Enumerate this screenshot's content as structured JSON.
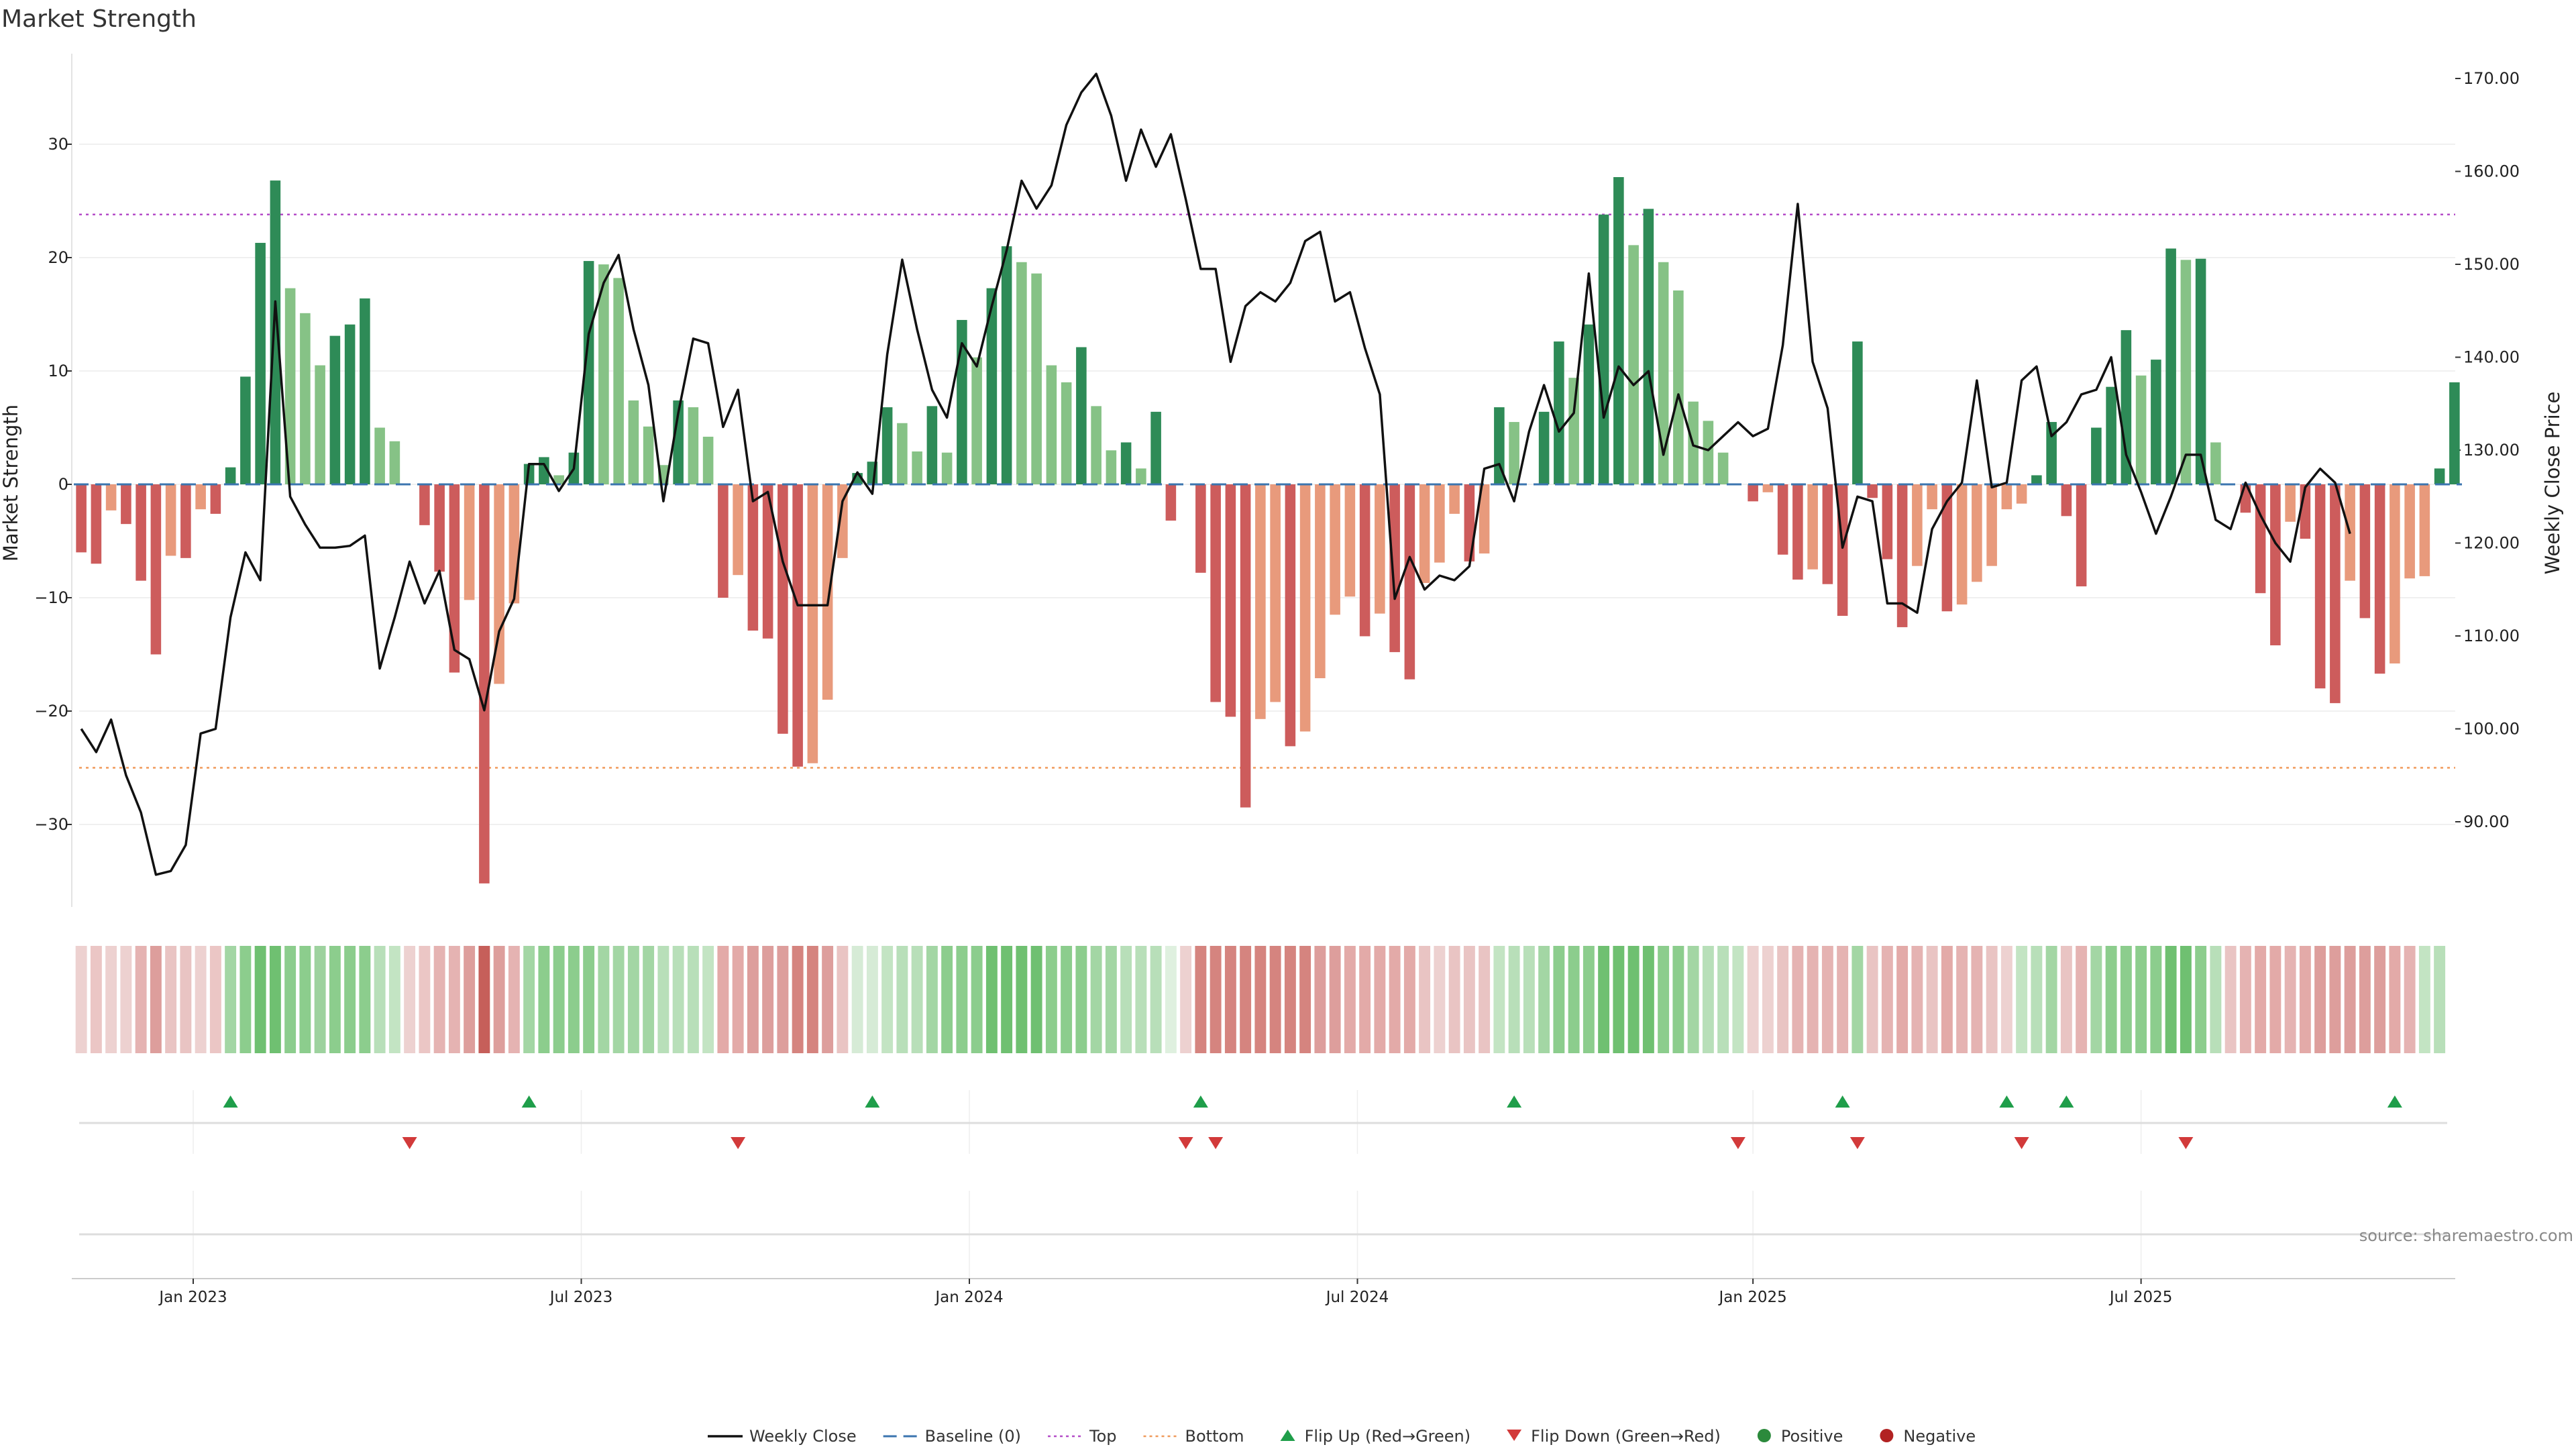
{
  "chart_data": {
    "type": "bar",
    "title": "Market Strength",
    "ylabel_left": "Market Strength",
    "ylabel_right": "Weekly Close Price",
    "ylim_left": [
      -38,
      38
    ],
    "ylim_right": [
      80,
      172
    ],
    "left_ticks": [
      30,
      20,
      10,
      0,
      -10,
      -20,
      -30
    ],
    "left_tick_labels": [
      "30",
      "20",
      "10",
      "0",
      "−10",
      "−20",
      "−30"
    ],
    "right_ticks": [
      170,
      160,
      150,
      140,
      130,
      120,
      110,
      100,
      90
    ],
    "right_tick_labels": [
      "170.00",
      "160.00",
      "150.00",
      "140.00",
      "130.00",
      "120.00",
      "110.00",
      "100.00",
      "90.00"
    ],
    "top_line": 23.8,
    "bottom_line": -25,
    "date_ticks": [
      {
        "label": "Jan 2023",
        "week": 7.5
      },
      {
        "label": "Jul 2023",
        "week": 33.5
      },
      {
        "label": "Jan 2024",
        "week": 59.5
      },
      {
        "label": "Jul 2024",
        "week": 85.5
      },
      {
        "label": "Jan 2025",
        "week": 112
      },
      {
        "label": "Jul 2025",
        "week": 138
      }
    ],
    "strength": [
      -6,
      -7,
      -2.3,
      -3.5,
      -8.5,
      -15,
      -6.3,
      -6.5,
      -2.2,
      -2.6,
      1.5,
      9.5,
      21.3,
      26.8,
      17.3,
      15.1,
      10.5,
      13.1,
      14.1,
      16.4,
      5,
      3.8,
      0,
      -3.6,
      -7.7,
      -16.6,
      -10.2,
      -35.2,
      -17.6,
      -10.5,
      1.8,
      2.4,
      0.8,
      2.8,
      19.7,
      19.4,
      18.2,
      7.4,
      5.1,
      1.7,
      7.4,
      6.8,
      4.2,
      -10,
      -8,
      -12.9,
      -13.6,
      -22,
      -24.9,
      -24.6,
      -19,
      -6.5,
      1,
      2,
      6.8,
      5.4,
      2.9,
      6.9,
      2.8,
      14.5,
      11.2,
      17.3,
      21,
      19.6,
      18.6,
      10.5,
      9,
      12.1,
      6.9,
      3,
      3.7,
      1.4,
      6.4,
      -3.2,
      0,
      -7.8,
      -19.2,
      -20.5,
      -28.5,
      -20.7,
      -19.2,
      -23.1,
      -21.8,
      -17.1,
      -11.5,
      -9.9,
      -13.4,
      -11.4,
      -14.8,
      -17.2,
      -8.7,
      -6.9,
      -2.6,
      -6.8,
      -6.1,
      6.8,
      5.5,
      0,
      6.4,
      12.6,
      9.4,
      14.1,
      23.8,
      27.1,
      21.1,
      24.3,
      19.6,
      17.1,
      7.3,
      5.6,
      2.8,
      0,
      -1.5,
      -0.7,
      -6.2,
      -8.4,
      -7.5,
      -8.8,
      -11.6,
      12.6,
      -1.2,
      -6.6,
      -12.6,
      -7.2,
      -2.2,
      -11.2,
      -10.6,
      -8.6,
      -7.2,
      -2.2,
      -1.7,
      0.8,
      5.5,
      -2.8,
      -9,
      5,
      8.6,
      13.6,
      9.6,
      11,
      20.8,
      19.8,
      19.9,
      3.7,
      0,
      -2.5,
      -9.6,
      -14.2,
      -3.3,
      -4.8,
      -18,
      -19.3,
      -8.5,
      -11.8,
      -16.7,
      -15.8,
      -8.3,
      -8.1,
      1.4,
      9
    ],
    "price": [
      100,
      97.5,
      101,
      95,
      91,
      84.3,
      84.7,
      87.5,
      99.5,
      100,
      112,
      119,
      116,
      146,
      125,
      122,
      119.5,
      119.5,
      119.7,
      120.8,
      106.5,
      112,
      118,
      113.5,
      117,
      108.5,
      107.5,
      102,
      110.5,
      114,
      128.5,
      128.5,
      125.6,
      128,
      142.5,
      148,
      151,
      143,
      137,
      124.5,
      134,
      142,
      141.5,
      132.5,
      136.5,
      124.5,
      125.5,
      118,
      113.3,
      113.3,
      113.3,
      124.5,
      127.6,
      125.3,
      140.3,
      150.5,
      143,
      136.5,
      133.5,
      141.5,
      139,
      145.5,
      151.5,
      159,
      156,
      158.5,
      165,
      168.5,
      170.5,
      166,
      159,
      164.5,
      160.5,
      164,
      157,
      149.5,
      149.5,
      139.5,
      145.5,
      147,
      146,
      148,
      152.5,
      153.5,
      146,
      147,
      141,
      136,
      114,
      118.5,
      115,
      116.5,
      116,
      117.5,
      128,
      128.5,
      124.5,
      132,
      137,
      132,
      134,
      149,
      133.5,
      139,
      137,
      138.5,
      129.5,
      136,
      130.5,
      130,
      131.5,
      133,
      131.5,
      132.3,
      141.3,
      156.5,
      139.5,
      134.5,
      119.5,
      125,
      124.5,
      113.5,
      113.5,
      112.5,
      121.5,
      124.5,
      126.5,
      137.5,
      126,
      126.5,
      137.5,
      139,
      131.5,
      133,
      136,
      136.5,
      140,
      129.5,
      125.5,
      121,
      125,
      129.5,
      129.5,
      122.5,
      121.5,
      126.5,
      123,
      120,
      118,
      126,
      128,
      126.5,
      121
    ],
    "band_colors": [
      "#edd1d0",
      "#ebc6c5",
      "#edd1d0",
      "#edd1d0",
      "#e5b3b2",
      "#dd9e9c",
      "#e9c4c3",
      "#e9c4c3",
      "#edd1d0",
      "#ebc6c5",
      "#a3d6a4",
      "#8ccd8d",
      "#6fc071",
      "#6fc071",
      "#8ccd8d",
      "#8ccd8d",
      "#9dd29e",
      "#8ccd8d",
      "#8ccd8d",
      "#8ccd8d",
      "#b8dfb9",
      "#c3e4c3",
      "#edd1d0",
      "#ebc6c5",
      "#e5b3b2",
      "#e5b3b2",
      "#dd9e9c",
      "#c65f5a",
      "#dd9e9c",
      "#e5b3b2",
      "#a3d6a4",
      "#8ccd8d",
      "#8ccd8d",
      "#8ccd8d",
      "#8ccd8d",
      "#a3d6a4",
      "#a3d6a4",
      "#a3d6a4",
      "#a3d6a4",
      "#b8dfb9",
      "#b8dfb9",
      "#b8dfb9",
      "#c3e4c3",
      "#e3aaa8",
      "#e3aaa8",
      "#dd9e9c",
      "#dd9e9c",
      "#dd9e9c",
      "#d5847f",
      "#d5847f",
      "#dd9e9c",
      "#e9c4c3",
      "#d6ebd6",
      "#d6ebd6",
      "#c3e4c3",
      "#b8dfb9",
      "#b8dfb9",
      "#a3d6a4",
      "#8ccd8d",
      "#8ccd8d",
      "#8ccd8d",
      "#6fc071",
      "#6fc071",
      "#6fc071",
      "#6fc071",
      "#8ccd8d",
      "#8ccd8d",
      "#8ccd8d",
      "#a3d6a4",
      "#a3d6a4",
      "#b8dfb9",
      "#b8dfb9",
      "#b8dfb9",
      "#dff0df",
      "#edd1d0",
      "#d5847f",
      "#d5847f",
      "#d5847f",
      "#d5847f",
      "#d5847f",
      "#d5847f",
      "#d5847f",
      "#d5847f",
      "#dd9e9c",
      "#dd9e9c",
      "#e3aaa8",
      "#e3aaa8",
      "#e3aaa8",
      "#e3aaa8",
      "#e3aaa8",
      "#e9c4c3",
      "#edd1d0",
      "#e9c4c3",
      "#e9c4c3",
      "#e9c4c3",
      "#c3e4c3",
      "#b8dfb9",
      "#b8dfb9",
      "#a3d6a4",
      "#8ccd8d",
      "#8ccd8d",
      "#8ccd8d",
      "#6fc071",
      "#6fc071",
      "#6fc071",
      "#6fc071",
      "#8ccd8d",
      "#8ccd8d",
      "#a3d6a4",
      "#b8dfb9",
      "#b8dfb9",
      "#c3e4c3",
      "#edd1d0",
      "#edd1d0",
      "#e9c4c3",
      "#e5b3b2",
      "#e5b3b2",
      "#e5b3b2",
      "#e5b3b2",
      "#a3d6a4",
      "#e9c4c3",
      "#e5b3b2",
      "#e3aaa8",
      "#e5b3b2",
      "#e9c4c3",
      "#e3aaa8",
      "#e5b3b2",
      "#e5b3b2",
      "#e9c4c3",
      "#edd1d0",
      "#c3e4c3",
      "#b8dfb9",
      "#a3d6a4",
      "#e9c4c3",
      "#e5b3b2",
      "#a3d6a4",
      "#8ccd8d",
      "#8ccd8d",
      "#8ccd8d",
      "#8ccd8d",
      "#6fc071",
      "#6fc071",
      "#8ccd8d",
      "#b8dfb9",
      "#e9c4c3",
      "#e5b3b2",
      "#e3aaa8",
      "#e3aaa8",
      "#e5b3b2",
      "#e3aaa8",
      "#dd9e9c",
      "#dd9e9c",
      "#dd9e9c",
      "#dd9e9c",
      "#dd9e9c",
      "#e3aaa8",
      "#e5b3b2",
      "#c3e4c3",
      "#b8dfb9"
    ],
    "flip_up_weeks": [
      10,
      30,
      53,
      75,
      96,
      118,
      129,
      133,
      155
    ],
    "flip_down_weeks": [
      22,
      44,
      74,
      76,
      111,
      119,
      130,
      141
    ],
    "legend": [
      {
        "label": "Weekly Close",
        "type": "line",
        "color": "#111111"
      },
      {
        "label": "Baseline (0)",
        "type": "dashed",
        "color": "#3b75af"
      },
      {
        "label": "Top",
        "type": "dotted",
        "color": "#b44cc8"
      },
      {
        "label": "Bottom",
        "type": "dotted",
        "color": "#f09a5a"
      },
      {
        "label": "Flip Up (Red→Green)",
        "type": "tri-up",
        "color": "#1f9e4a"
      },
      {
        "label": "Flip Down (Green→Red)",
        "type": "tri-down",
        "color": "#d23a3a"
      },
      {
        "label": "Positive",
        "type": "dot",
        "color": "#2c8a3c"
      },
      {
        "label": "Negative",
        "type": "dot",
        "color": "#b22222"
      }
    ]
  },
  "source": "source: sharemaestro.com",
  "colors": {
    "pos_strong": "#2e8b57",
    "pos_weak": "#86c286",
    "neg_strong": "#cd5c5c",
    "neg_weak": "#e89a7c"
  }
}
